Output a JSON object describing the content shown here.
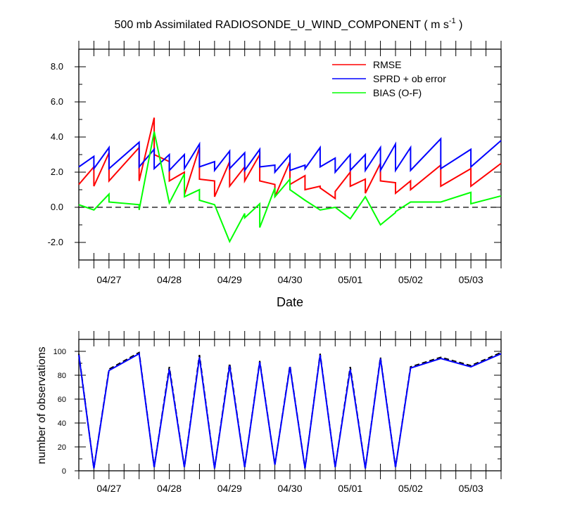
{
  "colors": {
    "rmse": "#ff0000",
    "sprd": "#0000ff",
    "bias": "#00ff00",
    "nobs_dashed": "#000000",
    "nobs_solid": "#0000ff",
    "axes": "#000000"
  },
  "chart_data": [
    {
      "type": "line",
      "title_main": "500 mb Assimilated RADIOSONDE_U_WIND_COMPONENT ( m s",
      "title_sup": "-1",
      "title_end": " )",
      "xlabel": "Date",
      "ylabel": "",
      "x_unit": "day",
      "xlim": [
        -0.5,
        6.5
      ],
      "ylim": [
        -3.0,
        9.0
      ],
      "yticks": [
        -2.0,
        0.0,
        2.0,
        4.0,
        6.0,
        8.0
      ],
      "ytick_labels": [
        "-2.0",
        "0.0",
        "2.0",
        "4.0",
        "6.0",
        "8.0"
      ],
      "xticks": [
        0,
        1,
        2,
        3,
        4,
        5,
        6
      ],
      "xtick_labels": [
        "04/27",
        "04/28",
        "04/29",
        "04/30",
        "05/01",
        "05/02",
        "05/03"
      ],
      "zero_line": {
        "y": 0,
        "style": "dashed"
      },
      "legend": {
        "placement": "top-right"
      },
      "series": [
        {
          "name": "RMSE",
          "key": "rmse",
          "x": [
            -0.5,
            -0.25,
            -0.25,
            0.0,
            0.0,
            0.5,
            0.5,
            0.75,
            0.75,
            1.0,
            1.0,
            1.25,
            1.25,
            1.5,
            1.5,
            1.75,
            1.75,
            2.0,
            2.0,
            2.25,
            2.25,
            2.5,
            2.5,
            2.75,
            2.75,
            3.0,
            3.0,
            3.25,
            3.25,
            3.5,
            3.5,
            3.75,
            3.75,
            4.0,
            4.0,
            4.25,
            4.25,
            4.5,
            4.5,
            4.75,
            4.75,
            5.0,
            5.0,
            5.5,
            5.5,
            6.0,
            6.0,
            6.5
          ],
          "y": [
            1.3,
            2.3,
            1.2,
            3.1,
            1.5,
            3.4,
            1.5,
            5.1,
            3.0,
            2.6,
            1.5,
            2.0,
            0.7,
            3.4,
            1.6,
            1.5,
            0.6,
            2.6,
            1.2,
            2.3,
            1.5,
            3.0,
            1.5,
            1.3,
            0.6,
            2.6,
            1.3,
            1.8,
            1.0,
            1.2,
            1.1,
            0.5,
            0.9,
            2.0,
            1.2,
            1.6,
            0.8,
            2.5,
            1.5,
            1.4,
            0.8,
            1.5,
            1.0,
            2.4,
            1.2,
            2.2,
            1.2,
            2.5
          ]
        },
        {
          "name": "SPRD + ob error",
          "key": "sprd",
          "x": [
            -0.5,
            -0.25,
            -0.25,
            0.0,
            0.0,
            0.5,
            0.5,
            0.75,
            0.75,
            1.0,
            1.0,
            1.25,
            1.25,
            1.5,
            1.5,
            1.75,
            1.75,
            2.0,
            2.0,
            2.25,
            2.25,
            2.5,
            2.5,
            2.75,
            2.75,
            3.0,
            3.0,
            3.25,
            3.25,
            3.5,
            3.5,
            3.75,
            3.75,
            4.0,
            4.0,
            4.25,
            4.25,
            4.5,
            4.5,
            4.75,
            4.75,
            5.0,
            5.0,
            5.5,
            5.5,
            6.0,
            6.0,
            6.5
          ],
          "y": [
            2.3,
            2.9,
            2.2,
            3.4,
            2.2,
            3.7,
            2.3,
            3.3,
            2.2,
            3.0,
            2.1,
            3.0,
            2.2,
            3.6,
            2.3,
            2.6,
            2.1,
            3.2,
            2.2,
            3.1,
            2.1,
            3.3,
            2.3,
            2.4,
            2.0,
            3.0,
            2.1,
            2.4,
            2.2,
            3.4,
            2.3,
            2.8,
            2.0,
            3.0,
            2.1,
            3.0,
            2.1,
            3.4,
            2.1,
            3.6,
            2.1,
            3.4,
            2.1,
            3.9,
            2.2,
            3.3,
            2.3,
            3.8
          ]
        },
        {
          "name": "BIAS (O-F)",
          "key": "bias",
          "x": [
            -0.5,
            -0.25,
            0.0,
            0.0,
            0.5,
            0.5,
            0.75,
            1.0,
            1.25,
            1.25,
            1.5,
            1.5,
            1.75,
            2.0,
            2.25,
            2.25,
            2.5,
            2.5,
            2.75,
            2.75,
            3.0,
            3.0,
            3.25,
            3.5,
            3.75,
            4.0,
            4.25,
            4.5,
            4.75,
            4.75,
            5.0,
            5.5,
            5.5,
            6.0,
            6.0,
            6.5
          ],
          "y": [
            0.15,
            -0.15,
            0.75,
            0.3,
            0.15,
            -0.15,
            4.3,
            0.25,
            1.9,
            0.6,
            1.0,
            0.4,
            0.15,
            -1.95,
            -0.35,
            -0.6,
            0.2,
            -1.15,
            1.1,
            0.6,
            1.6,
            1.0,
            0.4,
            -0.15,
            0.0,
            -0.65,
            0.6,
            -1.0,
            -0.3,
            -0.25,
            0.3,
            0.3,
            0.3,
            0.85,
            0.2,
            0.65
          ]
        }
      ]
    },
    {
      "type": "line",
      "title": "",
      "xlabel": "",
      "ylabel": "number of observations",
      "x_unit": "day",
      "xlim": [
        -0.5,
        6.5
      ],
      "ylim": [
        0,
        110
      ],
      "yticks": [
        0,
        20,
        40,
        60,
        80,
        100
      ],
      "ytick_labels": [
        "0",
        "20",
        "40",
        "60",
        "80",
        "100"
      ],
      "xticks": [
        0,
        1,
        2,
        3,
        4,
        5,
        6
      ],
      "xtick_labels": [
        "04/27",
        "04/28",
        "04/29",
        "04/30",
        "05/01",
        "05/02",
        "05/03"
      ],
      "series": [
        {
          "key": "nobs_dashed",
          "style": "dashed",
          "x": [
            -0.5,
            -0.25,
            0.0,
            0.5,
            0.75,
            1.0,
            1.25,
            1.5,
            1.75,
            2.0,
            2.25,
            2.5,
            2.75,
            3.0,
            3.25,
            3.5,
            3.75,
            4.0,
            4.25,
            4.5,
            4.75,
            5.0,
            5.5,
            6.0,
            6.5
          ],
          "y": [
            98,
            2,
            85,
            99,
            3,
            87,
            3,
            97,
            2,
            90,
            3,
            92,
            5,
            88,
            2,
            98,
            3,
            87,
            2,
            95,
            3,
            87,
            95,
            88,
            99
          ]
        },
        {
          "key": "nobs_solid",
          "style": "solid",
          "x": [
            -0.5,
            -0.25,
            0.0,
            0.5,
            0.75,
            1.0,
            1.25,
            1.5,
            1.75,
            2.0,
            2.25,
            2.5,
            2.75,
            3.0,
            3.25,
            3.5,
            3.75,
            4.0,
            4.25,
            4.5,
            4.75,
            5.0,
            5.5,
            6.0,
            6.5
          ],
          "y": [
            97,
            2,
            84,
            98,
            3,
            85,
            3,
            95,
            2,
            88,
            3,
            91,
            5,
            87,
            2,
            97,
            3,
            85,
            2,
            94,
            3,
            86,
            94,
            87,
            98
          ]
        }
      ]
    }
  ]
}
